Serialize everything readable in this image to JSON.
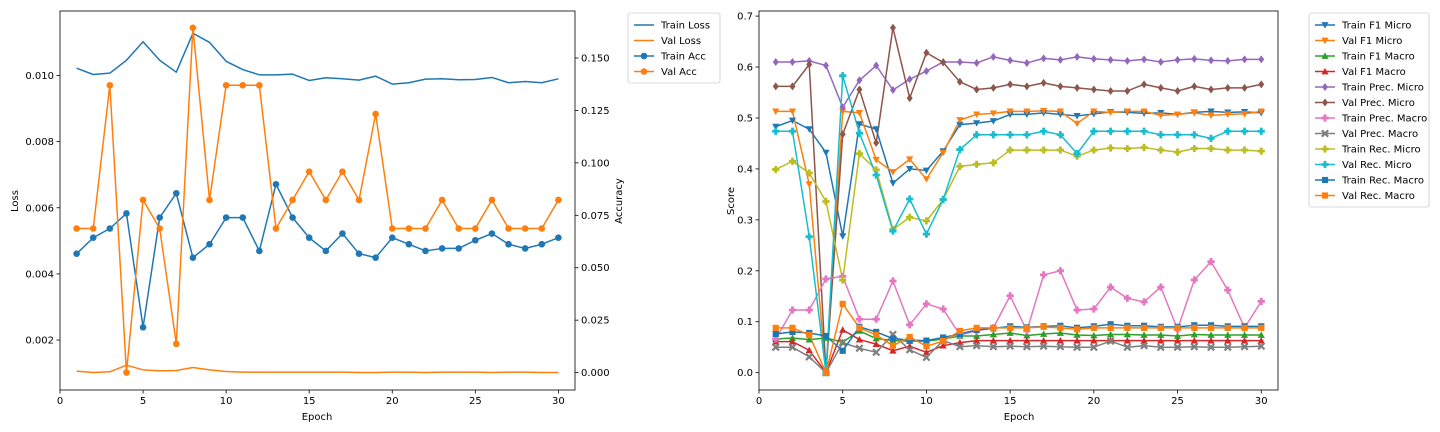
{
  "chart_data": [
    {
      "type": "line",
      "xlabel": "Epoch",
      "ylabel_left": "Loss",
      "ylabel_right": "Accuracy",
      "x": [
        1,
        2,
        3,
        4,
        5,
        6,
        7,
        8,
        9,
        10,
        11,
        12,
        13,
        14,
        15,
        16,
        17,
        18,
        19,
        20,
        21,
        22,
        23,
        24,
        25,
        26,
        27,
        28,
        29,
        30
      ],
      "xlim": [
        0.0,
        31.0
      ],
      "xticks": [
        0,
        5,
        10,
        15,
        20,
        25,
        30
      ],
      "ylim_left": [
        0.00049,
        0.01195
      ],
      "ylim_right": [
        -0.0083,
        0.1724
      ],
      "yticks_left": [
        0.002,
        0.004,
        0.006,
        0.008,
        0.01
      ],
      "ytick_labels_left": [
        "0.002",
        "0.004",
        "0.006",
        "0.008",
        "0.010"
      ],
      "yticks_right": [
        0.0,
        0.025,
        0.05,
        0.075,
        0.1,
        0.125,
        0.15
      ],
      "ytick_labels_right": [
        "0.000",
        "0.025",
        "0.050",
        "0.075",
        "0.100",
        "0.125",
        "0.150"
      ],
      "legend_position": "outside-right",
      "series": [
        {
          "name": "Train Loss",
          "axis": "left",
          "color": "#1f77b4",
          "marker": "none",
          "values": [
            0.01022,
            0.01003,
            0.01007,
            0.01046,
            0.01102,
            0.01046,
            0.0101,
            0.01128,
            0.011,
            0.01043,
            0.01018,
            0.01002,
            0.01002,
            0.01004,
            0.00985,
            0.00993,
            0.0099,
            0.00986,
            0.00998,
            0.00974,
            0.00978,
            0.00989,
            0.0099,
            0.00987,
            0.00988,
            0.00994,
            0.00978,
            0.00982,
            0.00978,
            0.0099
          ]
        },
        {
          "name": "Val Loss",
          "axis": "left",
          "color": "#ff7f0e",
          "marker": "none",
          "values": [
            0.00106,
            0.00102,
            0.00104,
            0.00124,
            0.0011,
            0.00107,
            0.00108,
            0.00117,
            0.0011,
            0.00105,
            0.00103,
            0.00103,
            0.00103,
            0.00103,
            0.00103,
            0.00103,
            0.00103,
            0.00102,
            0.00102,
            0.00103,
            0.00103,
            0.00102,
            0.00103,
            0.00103,
            0.00103,
            0.00102,
            0.00103,
            0.00103,
            0.00102,
            0.00102
          ]
        },
        {
          "name": "Train Acc",
          "axis": "right",
          "color": "#1f77b4",
          "marker": "circle",
          "values": [
            0.0567,
            0.0643,
            0.0687,
            0.0759,
            0.0216,
            0.0739,
            0.0855,
            0.0548,
            0.0612,
            0.0739,
            0.0739,
            0.058,
            0.0898,
            0.0739,
            0.0643,
            0.058,
            0.0663,
            0.0567,
            0.0548,
            0.0643,
            0.0612,
            0.058,
            0.0592,
            0.0592,
            0.0631,
            0.0663,
            0.0612,
            0.0592,
            0.0612,
            0.0643
          ]
        },
        {
          "name": "Val Acc",
          "axis": "right",
          "color": "#ff7f0e",
          "marker": "circle",
          "values": [
            0.0687,
            0.0687,
            0.137,
            0.0,
            0.0823,
            0.0687,
            0.0137,
            0.1644,
            0.0823,
            0.137,
            0.137,
            0.137,
            0.0687,
            0.0823,
            0.0958,
            0.0823,
            0.0958,
            0.0823,
            0.1233,
            0.0687,
            0.0687,
            0.0687,
            0.0823,
            0.0687,
            0.0687,
            0.0823,
            0.0687,
            0.0687,
            0.0687,
            0.0823
          ]
        }
      ]
    },
    {
      "type": "line",
      "xlabel": "Epoch",
      "ylabel": "Score",
      "x": [
        1,
        2,
        3,
        4,
        5,
        6,
        7,
        8,
        9,
        10,
        11,
        12,
        13,
        14,
        15,
        16,
        17,
        18,
        19,
        20,
        21,
        22,
        23,
        24,
        25,
        26,
        27,
        28,
        29,
        30
      ],
      "xlim": [
        0.0,
        31.0
      ],
      "xticks": [
        0,
        5,
        10,
        15,
        20,
        25,
        30
      ],
      "ylim": [
        -0.034,
        0.71
      ],
      "yticks": [
        0.0,
        0.1,
        0.2,
        0.3,
        0.4,
        0.5,
        0.6,
        0.7
      ],
      "ytick_labels": [
        "0.0",
        "0.1",
        "0.2",
        "0.3",
        "0.4",
        "0.5",
        "0.6",
        "0.7"
      ],
      "legend_position": "outside-right",
      "series": [
        {
          "name": "Train F1 Micro",
          "color": "#1f77b4",
          "marker": "triangle_down",
          "values": [
            0.483,
            0.495,
            0.478,
            0.432,
            0.268,
            0.488,
            0.478,
            0.372,
            0.4,
            0.397,
            0.435,
            0.487,
            0.49,
            0.494,
            0.507,
            0.507,
            0.51,
            0.507,
            0.504,
            0.508,
            0.512,
            0.511,
            0.509,
            0.51,
            0.507,
            0.511,
            0.513,
            0.511,
            0.512,
            0.51
          ]
        },
        {
          "name": "Val F1 Micro",
          "color": "#ff7f0e",
          "marker": "triangle_down",
          "values": [
            0.513,
            0.513,
            0.37,
            0.0,
            0.513,
            0.51,
            0.418,
            0.394,
            0.419,
            0.38,
            0.432,
            0.496,
            0.507,
            0.509,
            0.513,
            0.513,
            0.514,
            0.513,
            0.489,
            0.513,
            0.511,
            0.513,
            0.513,
            0.505,
            0.507,
            0.51,
            0.505,
            0.507,
            0.508,
            0.513
          ]
        },
        {
          "name": "Train F1 Macro",
          "color": "#2ca02c",
          "marker": "triangle_up",
          "values": [
            0.066,
            0.068,
            0.065,
            0.068,
            0.06,
            0.082,
            0.067,
            0.063,
            0.062,
            0.062,
            0.066,
            0.072,
            0.072,
            0.075,
            0.078,
            0.073,
            0.076,
            0.078,
            0.074,
            0.073,
            0.075,
            0.075,
            0.074,
            0.074,
            0.072,
            0.075,
            0.074,
            0.074,
            0.074,
            0.074
          ]
        },
        {
          "name": "Val F1 Macro",
          "color": "#d62728",
          "marker": "triangle_up",
          "values": [
            0.061,
            0.061,
            0.044,
            0.0,
            0.084,
            0.065,
            0.056,
            0.043,
            0.052,
            0.04,
            0.053,
            0.059,
            0.063,
            0.063,
            0.063,
            0.063,
            0.063,
            0.063,
            0.063,
            0.063,
            0.063,
            0.063,
            0.063,
            0.063,
            0.063,
            0.063,
            0.063,
            0.063,
            0.063,
            0.063
          ]
        },
        {
          "name": "Train Prec. Micro",
          "color": "#9467bd",
          "marker": "diamond",
          "values": [
            0.61,
            0.61,
            0.612,
            0.603,
            0.521,
            0.574,
            0.603,
            0.555,
            0.576,
            0.592,
            0.61,
            0.61,
            0.608,
            0.62,
            0.613,
            0.608,
            0.617,
            0.614,
            0.62,
            0.616,
            0.614,
            0.612,
            0.615,
            0.61,
            0.614,
            0.616,
            0.613,
            0.612,
            0.615,
            0.615
          ]
        },
        {
          "name": "Val Prec. Micro",
          "color": "#8c564b",
          "marker": "diamond",
          "values": [
            0.562,
            0.562,
            0.605,
            0.0,
            0.468,
            0.556,
            0.451,
            0.677,
            0.539,
            0.628,
            0.609,
            0.571,
            0.556,
            0.559,
            0.566,
            0.562,
            0.569,
            0.562,
            0.559,
            0.556,
            0.553,
            0.553,
            0.566,
            0.559,
            0.553,
            0.562,
            0.556,
            0.559,
            0.559,
            0.566
          ]
        },
        {
          "name": "Train Prec. Macro",
          "color": "#e377c2",
          "marker": "plus",
          "values": [
            0.066,
            0.123,
            0.123,
            0.184,
            0.189,
            0.105,
            0.105,
            0.18,
            0.094,
            0.135,
            0.125,
            0.074,
            0.082,
            0.088,
            0.151,
            0.082,
            0.192,
            0.2,
            0.123,
            0.125,
            0.168,
            0.146,
            0.139,
            0.168,
            0.085,
            0.182,
            0.218,
            0.162,
            0.088,
            0.14
          ]
        },
        {
          "name": "Val Prec. Macro",
          "color": "#7f7f7f",
          "marker": "x",
          "values": [
            0.05,
            0.05,
            0.031,
            0.0,
            0.059,
            0.048,
            0.04,
            0.075,
            0.045,
            0.03,
            0.063,
            0.051,
            0.053,
            0.051,
            0.052,
            0.051,
            0.052,
            0.051,
            0.05,
            0.05,
            0.062,
            0.05,
            0.053,
            0.05,
            0.05,
            0.051,
            0.05,
            0.05,
            0.051,
            0.052
          ]
        },
        {
          "name": "Train Rec. Micro",
          "color": "#bcbd22",
          "marker": "plus",
          "values": [
            0.399,
            0.415,
            0.392,
            0.336,
            0.182,
            0.43,
            0.398,
            0.281,
            0.305,
            0.298,
            0.34,
            0.405,
            0.409,
            0.412,
            0.437,
            0.437,
            0.437,
            0.437,
            0.425,
            0.437,
            0.441,
            0.44,
            0.442,
            0.437,
            0.433,
            0.44,
            0.44,
            0.437,
            0.437,
            0.435
          ]
        },
        {
          "name": "Val Rec. Micro",
          "color": "#17becf",
          "marker": "plus",
          "values": [
            0.474,
            0.474,
            0.267,
            0.0,
            0.583,
            0.47,
            0.388,
            0.278,
            0.341,
            0.272,
            0.34,
            0.438,
            0.467,
            0.467,
            0.467,
            0.467,
            0.474,
            0.467,
            0.43,
            0.474,
            0.474,
            0.474,
            0.474,
            0.467,
            0.467,
            0.467,
            0.46,
            0.474,
            0.474,
            0.474
          ]
        },
        {
          "name": "Train Rec. Macro",
          "color": "#1f77b4",
          "marker": "square",
          "values": [
            0.076,
            0.08,
            0.078,
            0.072,
            0.043,
            0.09,
            0.08,
            0.067,
            0.064,
            0.063,
            0.069,
            0.076,
            0.084,
            0.087,
            0.091,
            0.089,
            0.091,
            0.092,
            0.088,
            0.091,
            0.095,
            0.092,
            0.092,
            0.09,
            0.09,
            0.093,
            0.093,
            0.091,
            0.091,
            0.091
          ]
        },
        {
          "name": "Val Rec. Macro",
          "color": "#ff7f0e",
          "marker": "square",
          "values": [
            0.088,
            0.088,
            0.074,
            0.0,
            0.135,
            0.088,
            0.074,
            0.053,
            0.07,
            0.052,
            0.062,
            0.082,
            0.088,
            0.088,
            0.088,
            0.088,
            0.09,
            0.088,
            0.085,
            0.088,
            0.088,
            0.088,
            0.088,
            0.088,
            0.088,
            0.088,
            0.088,
            0.088,
            0.088,
            0.088
          ]
        }
      ]
    }
  ]
}
